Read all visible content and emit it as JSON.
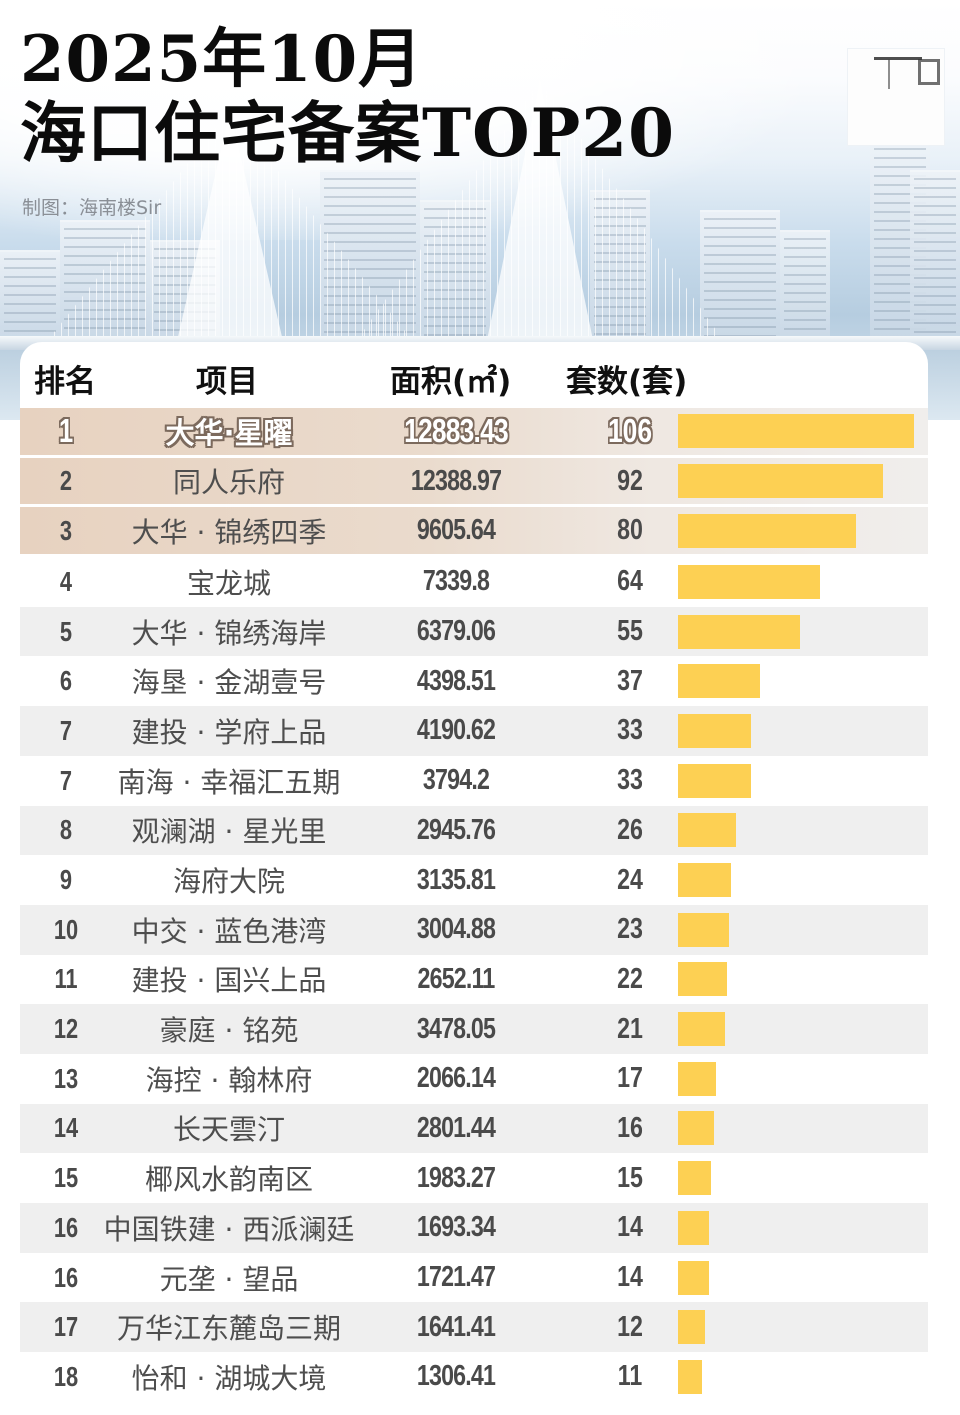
{
  "header": {
    "title_line1": "2025年10月",
    "title_line2": "海口住宅备案TOP20",
    "credit": "制图：海南楼Sir"
  },
  "table": {
    "columns": {
      "rank": "排名",
      "project": "项目",
      "area": "面积(㎡)",
      "units": "套数(套)"
    },
    "rows": [
      {
        "rank": "1",
        "project": "大华·星曜",
        "area": "12883.43",
        "units": "106"
      },
      {
        "rank": "2",
        "project": "同人乐府",
        "area": "12388.97",
        "units": "92"
      },
      {
        "rank": "3",
        "project": "大华 · 锦绣四季",
        "area": "9605.64",
        "units": "80"
      },
      {
        "rank": "4",
        "project": "宝龙城",
        "area": "7339.8",
        "units": "64"
      },
      {
        "rank": "5",
        "project": "大华 · 锦绣海岸",
        "area": "6379.06",
        "units": "55"
      },
      {
        "rank": "6",
        "project": "海垦 · 金湖壹号",
        "area": "4398.51",
        "units": "37"
      },
      {
        "rank": "7",
        "project": "建投 · 学府上品",
        "area": "4190.62",
        "units": "33"
      },
      {
        "rank": "7",
        "project": "南海 · 幸福汇五期",
        "area": "3794.2",
        "units": "33"
      },
      {
        "rank": "8",
        "project": "观澜湖 · 星光里",
        "area": "2945.76",
        "units": "26"
      },
      {
        "rank": "9",
        "project": "海府大院",
        "area": "3135.81",
        "units": "24"
      },
      {
        "rank": "10",
        "project": "中交 · 蓝色港湾",
        "area": "3004.88",
        "units": "23"
      },
      {
        "rank": "11",
        "project": "建投 · 国兴上品",
        "area": "2652.11",
        "units": "22"
      },
      {
        "rank": "12",
        "project": "豪庭 · 铭苑",
        "area": "3478.05",
        "units": "21"
      },
      {
        "rank": "13",
        "project": "海控 · 翰林府",
        "area": "2066.14",
        "units": "17"
      },
      {
        "rank": "14",
        "project": "长天雲汀",
        "area": "2801.44",
        "units": "16"
      },
      {
        "rank": "15",
        "project": "椰风水韵南区",
        "area": "1983.27",
        "units": "15"
      },
      {
        "rank": "16",
        "project": "中国铁建 · 西派澜廷",
        "area": "1693.34",
        "units": "14"
      },
      {
        "rank": "16",
        "project": "元垄 · 望品",
        "area": "1721.47",
        "units": "14"
      },
      {
        "rank": "17",
        "project": "万华江东麓岛三期",
        "area": "1641.41",
        "units": "12"
      },
      {
        "rank": "18",
        "project": "怡和 · 湖城大境",
        "area": "1306.41",
        "units": "11"
      }
    ]
  },
  "colors": {
    "bar": "#fdd053",
    "top3_row": "#e7d2c0",
    "alt_row": "#efefef",
    "text": "#4a4a4a",
    "title": "#0b0b0b",
    "credit": "#8a8f96"
  },
  "chart_data": {
    "type": "bar",
    "orientation": "horizontal",
    "title": "2025年10月 海口住宅备案TOP20",
    "subtitle": "制图：海南楼Sir",
    "xlabel": "套数(套)",
    "ylabel": "项目",
    "categories": [
      "大华·星曜",
      "同人乐府",
      "大华·锦绣四季",
      "宝龙城",
      "大华·锦绣海岸",
      "海垦·金湖壹号",
      "建投·学府上品",
      "南海·幸福汇五期",
      "观澜湖·星光里",
      "海府大院",
      "中交·蓝色港湾",
      "建投·国兴上品",
      "豪庭·铭苑",
      "海控·翰林府",
      "长天雲汀",
      "椰风水韵南区",
      "中国铁建·西派澜廷",
      "元垄·望品",
      "万华江东麓岛三期",
      "怡和·湖城大境"
    ],
    "ranks": [
      1,
      2,
      3,
      4,
      5,
      6,
      7,
      7,
      8,
      9,
      10,
      11,
      12,
      13,
      14,
      15,
      16,
      16,
      17,
      18
    ],
    "series": [
      {
        "name": "套数(套)",
        "values": [
          106,
          92,
          80,
          64,
          55,
          37,
          33,
          33,
          26,
          24,
          23,
          22,
          21,
          17,
          16,
          15,
          14,
          14,
          12,
          11
        ]
      },
      {
        "name": "面积(㎡)",
        "values": [
          12883.43,
          12388.97,
          9605.64,
          7339.8,
          6379.06,
          4398.51,
          4190.62,
          3794.2,
          2945.76,
          3135.81,
          3004.88,
          2652.11,
          3478.05,
          2066.14,
          2801.44,
          1983.27,
          1693.34,
          1721.47,
          1641.41,
          1306.41
        ]
      }
    ],
    "bar_series": "套数(套)",
    "grid": false,
    "legend": "none"
  }
}
